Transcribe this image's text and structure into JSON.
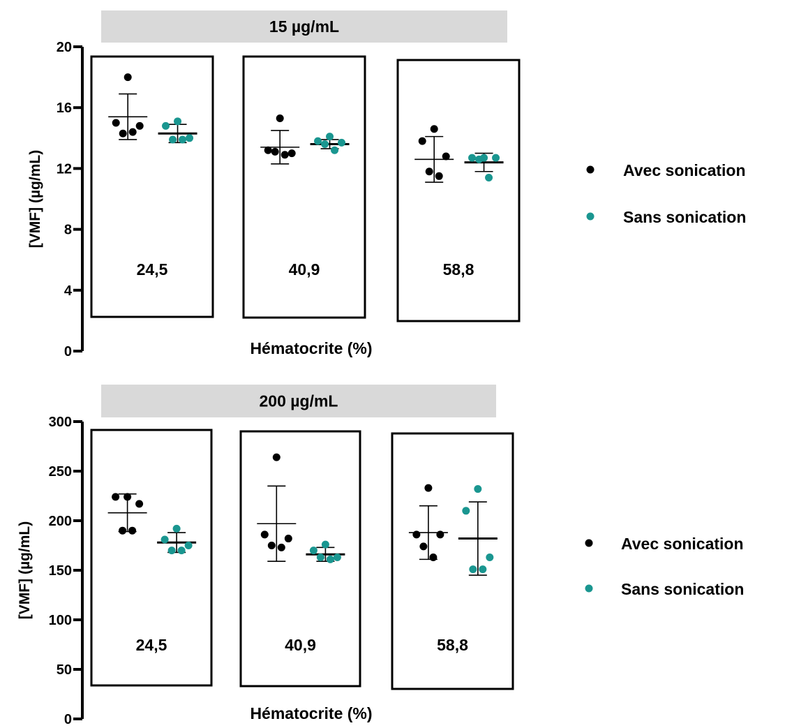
{
  "chart_data": [
    {
      "type": "scatter",
      "title": "15 µg/mL",
      "xlabel": "Hématocrite (%)",
      "ylabel": "[VMF] (µg/mL)",
      "ylim": [
        0,
        20
      ],
      "yticks": [
        0,
        4,
        8,
        12,
        16,
        20
      ],
      "groups": [
        "24,5",
        "40,9",
        "58,8"
      ],
      "legend_position": "right",
      "series": [
        {
          "name": "Avec sonication",
          "color": "#000000",
          "points": [
            [
              18.0,
              15.0,
              14.8,
              14.3,
              14.4
            ],
            [
              15.3,
              13.2,
              13.0,
              13.1,
              12.9
            ],
            [
              14.6,
              13.8,
              12.8,
              11.8,
              11.5
            ]
          ],
          "mean": [
            15.4,
            13.4,
            12.6
          ],
          "sd": [
            1.5,
            1.1,
            1.5
          ]
        },
        {
          "name": "Sans sonication",
          "color": "#1a9690",
          "points": [
            [
              15.1,
              14.8,
              14.0,
              13.9,
              13.9
            ],
            [
              14.1,
              13.8,
              13.7,
              13.6,
              13.2
            ],
            [
              12.7,
              12.7,
              12.7,
              12.6,
              11.4
            ]
          ],
          "mean": [
            14.3,
            13.6,
            12.4
          ],
          "sd": [
            0.6,
            0.3,
            0.6
          ]
        }
      ]
    },
    {
      "type": "scatter",
      "title": "200 µg/mL",
      "xlabel": "Hématocrite (%)",
      "ylabel": "[VMF] (µg/mL)",
      "ylim": [
        0,
        300
      ],
      "yticks": [
        0,
        50,
        100,
        150,
        200,
        250,
        300
      ],
      "groups": [
        "24,5",
        "40,9",
        "58,8"
      ],
      "legend_position": "right",
      "series": [
        {
          "name": "Avec sonication",
          "color": "#000000",
          "points": [
            [
              224,
              224,
              217,
              190,
              190
            ],
            [
              264,
              186,
              182,
              175,
              173
            ],
            [
              233,
              186,
              186,
              174,
              163
            ]
          ],
          "mean": [
            208,
            197,
            188
          ],
          "sd": [
            19,
            38,
            27
          ]
        },
        {
          "name": "Sans sonication",
          "color": "#1a9690",
          "points": [
            [
              192,
              181,
              175,
              170,
              170
            ],
            [
              176,
              170,
              163,
              163,
              161
            ],
            [
              232,
              210,
              163,
              151,
              151
            ]
          ],
          "mean": [
            178,
            166,
            182
          ],
          "sd": [
            10,
            7,
            37
          ]
        }
      ]
    }
  ]
}
